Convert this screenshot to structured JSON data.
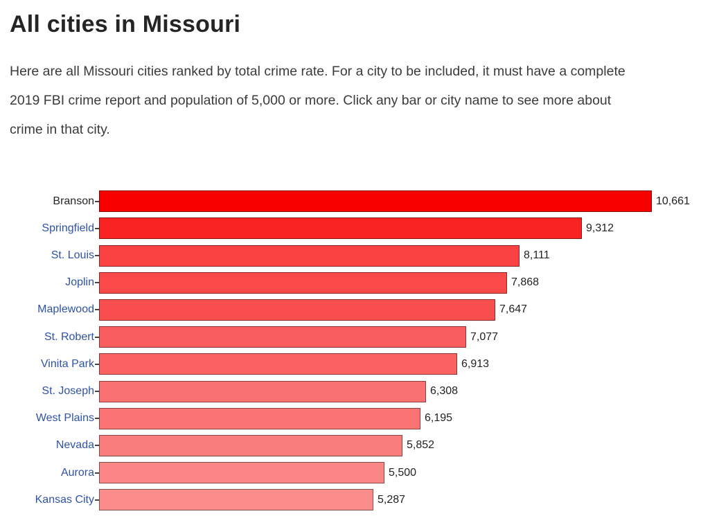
{
  "page": {
    "title": "All cities in Missouri",
    "description": "Here are all Missouri cities ranked by total crime rate. For a city to be included, it must have a complete 2019 FBI crime report and population of 5,000 or more. Click any bar or city name to see more about crime in that city."
  },
  "colors": {
    "background": "#ffffff",
    "title_text": "#252525",
    "body_text": "#3b3b3b",
    "link_blue": "#2f52a8",
    "current_city_text": "#252525",
    "value_text": "#222222",
    "bar_border": "rgba(0,0,0,0.45)",
    "axis_tick": "#444444"
  },
  "chart_data": {
    "type": "bar",
    "orientation": "horizontal",
    "title": "",
    "xlabel": "",
    "ylabel": "",
    "xlim": [
      0,
      10661
    ],
    "grid": false,
    "legend": false,
    "categories": [
      "Branson",
      "Springfield",
      "St. Louis",
      "Joplin",
      "Maplewood",
      "St. Robert",
      "Vinita Park",
      "St. Joseph",
      "West Plains",
      "Nevada",
      "Aurora",
      "Kansas City"
    ],
    "values": [
      10661,
      9312,
      8111,
      7868,
      7647,
      7077,
      6913,
      6308,
      6195,
      5852,
      5500,
      5287
    ],
    "bars": [
      {
        "city": "Branson",
        "value": 10661,
        "value_label": "10,661",
        "bar_color": "#fa0000",
        "is_link": false
      },
      {
        "city": "Springfield",
        "value": 9312,
        "value_label": "9,312",
        "bar_color": "#fa2323",
        "is_link": true
      },
      {
        "city": "St. Louis",
        "value": 8111,
        "value_label": "8,111",
        "bar_color": "#fa4242",
        "is_link": true
      },
      {
        "city": "Joplin",
        "value": 7868,
        "value_label": "7,868",
        "bar_color": "#fa4949",
        "is_link": true
      },
      {
        "city": "Maplewood",
        "value": 7647,
        "value_label": "7,647",
        "bar_color": "#fa4f4f",
        "is_link": true
      },
      {
        "city": "St. Robert",
        "value": 7077,
        "value_label": "7,077",
        "bar_color": "#fa5d5d",
        "is_link": true
      },
      {
        "city": "Vinita Park",
        "value": 6913,
        "value_label": "6,913",
        "bar_color": "#fa6262",
        "is_link": true
      },
      {
        "city": "St. Joseph",
        "value": 6308,
        "value_label": "6,308",
        "bar_color": "#fa7171",
        "is_link": true
      },
      {
        "city": "West Plains",
        "value": 6195,
        "value_label": "6,195",
        "bar_color": "#fa7474",
        "is_link": true
      },
      {
        "city": "Nevada",
        "value": 5852,
        "value_label": "5,852",
        "bar_color": "#fa7d7d",
        "is_link": true
      },
      {
        "city": "Aurora",
        "value": 5500,
        "value_label": "5,500",
        "bar_color": "#fa8686",
        "is_link": true
      },
      {
        "city": "Kansas City",
        "value": 5287,
        "value_label": "5,287",
        "bar_color": "#fa8c8c",
        "is_link": true
      }
    ]
  }
}
